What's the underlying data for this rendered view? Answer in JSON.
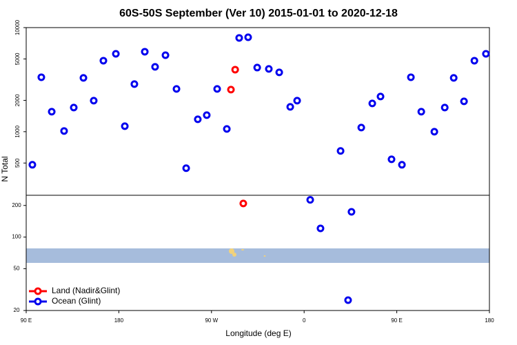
{
  "chart_data": [
    {
      "type": "scatter",
      "title": "60S-50S September (Ver 10)   2015-01-01 to 2020-12-18",
      "ylabel": "N Total",
      "log_y": true,
      "xlim": [
        90,
        540
      ],
      "ylim": [
        245,
        10000
      ],
      "yticks": [
        500,
        1000,
        2000,
        5000,
        10000
      ],
      "series": [
        {
          "name": "Land (Nadir&Glint)",
          "color": "#ff0000",
          "x": [
            288.9,
            293.0
          ],
          "values": [
            2535,
            3945
          ]
        },
        {
          "name": "Ocean (Glint)",
          "color": "#0000ee",
          "x": [
            96.0,
            104.7,
            114.8,
            126.8,
            136.2,
            145.6,
            155.6,
            165.0,
            177.1,
            185.8,
            195.1,
            205.2,
            215.2,
            225.3,
            236.0,
            245.4,
            256.7,
            265.4,
            275.5,
            284.9,
            296.9,
            305.6,
            314.4,
            325.7,
            335.8,
            346.5,
            353.2,
            395.4,
            415.5,
            426.2,
            434.2,
            444.9,
            455.0,
            463.7,
            473.8,
            486.5,
            496.6,
            505.3,
            515.3,
            525.4,
            536.6
          ],
          "values": [
            481,
            3335,
            1556,
            1016,
            1706,
            3289,
            1986,
            4810,
            5603,
            1130,
            2864,
            5866,
            4195,
            5432,
            2574,
            446,
            1315,
            1442,
            2574,
            1062,
            7960,
            8080,
            4130,
            4010,
            3713,
            1731,
            1986,
            653,
            1096,
            1870,
            2178,
            543,
            481,
            3335,
            1556,
            1000,
            1706,
            3289,
            1956,
            4810,
            5603
          ]
        }
      ]
    },
    {
      "type": "scatter",
      "xlabel": "Longitude (deg E)",
      "log_y": true,
      "legend": "lower left",
      "xlim": [
        90,
        540
      ],
      "xticks": [
        {
          "value": 90,
          "label": "90 E"
        },
        180,
        {
          "value": 270,
          "label": "90 W"
        },
        {
          "value": 360,
          "label": "0"
        },
        {
          "value": 450,
          "label": "90 E"
        },
        {
          "value": 540,
          "label": "180"
        }
      ],
      "ylim": [
        20,
        250
      ],
      "yticks": [
        20,
        50,
        100,
        200
      ],
      "series": [
        {
          "name": "Land (Nadir&Glint)",
          "color": "#ff0000",
          "x": [
            300.9
          ],
          "values": [
            209
          ]
        },
        {
          "name": "Ocean (Glint)",
          "color": "#0000ee",
          "x": [
            365.9,
            375.9,
            406.0,
            402.7
          ],
          "values": [
            226,
            121,
            174,
            25.1
          ]
        }
      ]
    }
  ]
}
